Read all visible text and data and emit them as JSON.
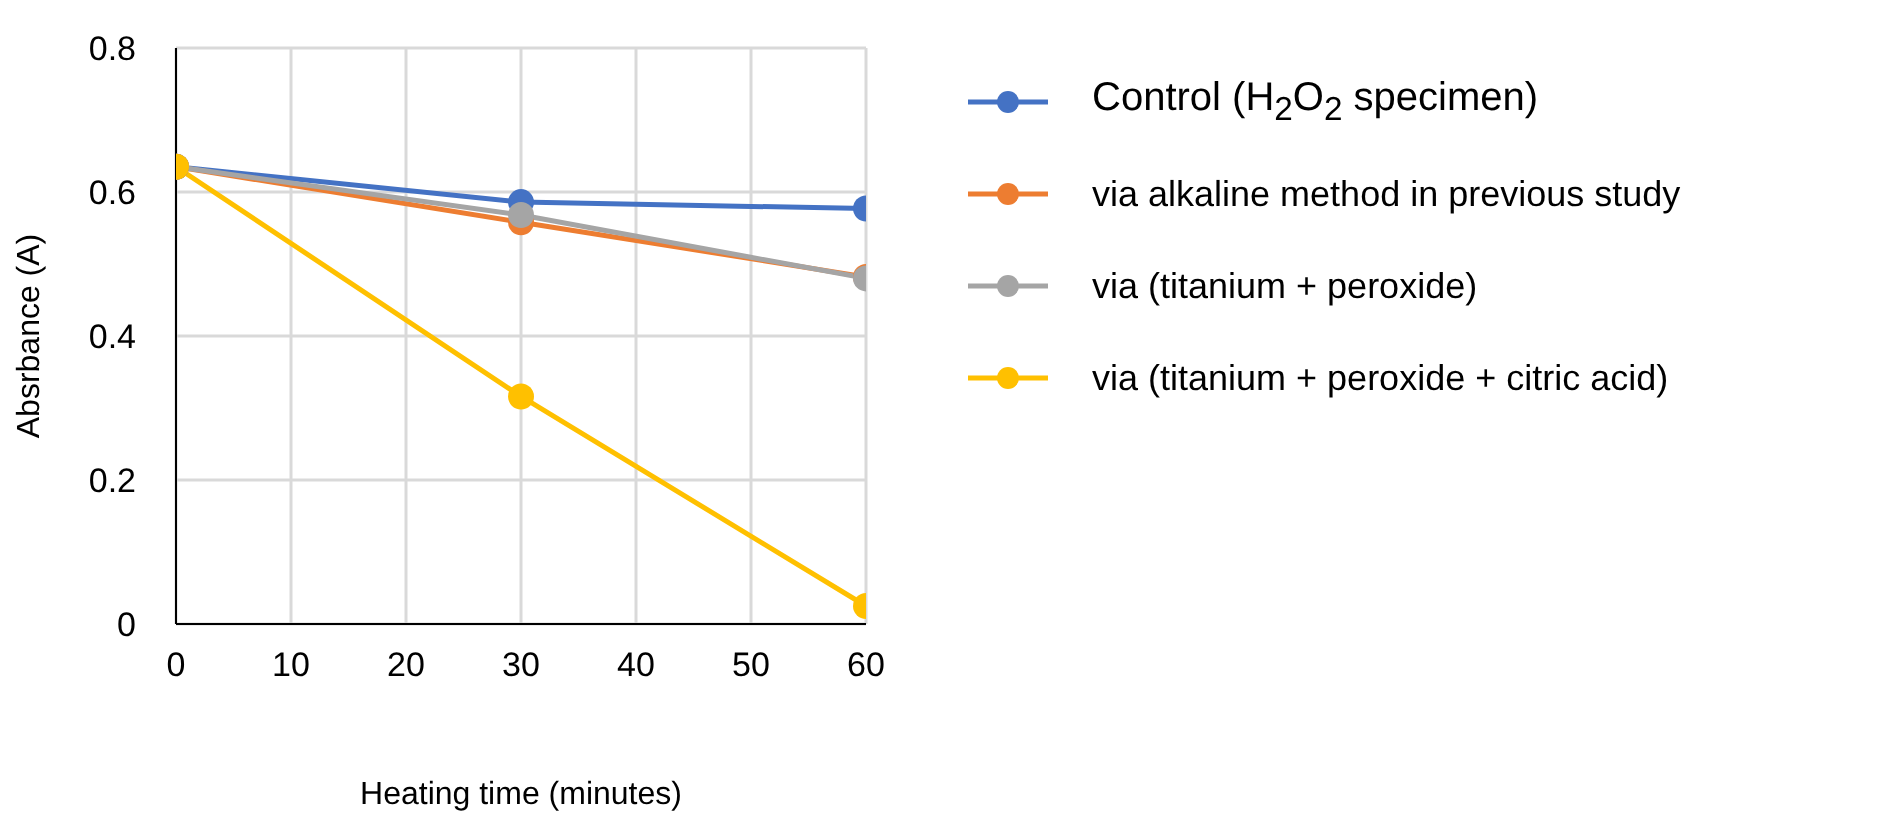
{
  "chart_data": {
    "type": "line",
    "xlabel": "Heating time (minutes)",
    "ylabel": "Absrbance (A)",
    "x": [
      0,
      30,
      60
    ],
    "series": [
      {
        "name": "Control (H$_{2}$O$_{2}$ specimen)",
        "color": "#4472c4",
        "values": [
          0.635,
          0.586,
          0.577
        ]
      },
      {
        "name": "via alkaline method in previous study",
        "color": "#ed7d31",
        "values": [
          0.635,
          0.558,
          0.482
        ]
      },
      {
        "name": "via (titanium + peroxide)",
        "color": "#a5a5a5",
        "values": [
          0.635,
          0.568,
          0.48
        ]
      },
      {
        "name": "via (titanium + peroxide + citric acid)",
        "color": "#ffc000",
        "values": [
          0.635,
          0.316,
          0.025
        ]
      }
    ],
    "xlim": [
      0,
      60
    ],
    "xticks": [
      0,
      10,
      20,
      30,
      40,
      50,
      60
    ],
    "ylim": [
      0,
      0.8
    ],
    "yticks": [
      0,
      0.2,
      0.4,
      0.6,
      0.8
    ],
    "grid": true,
    "legend": "right",
    "marker": "circle",
    "line_style": "solid"
  }
}
